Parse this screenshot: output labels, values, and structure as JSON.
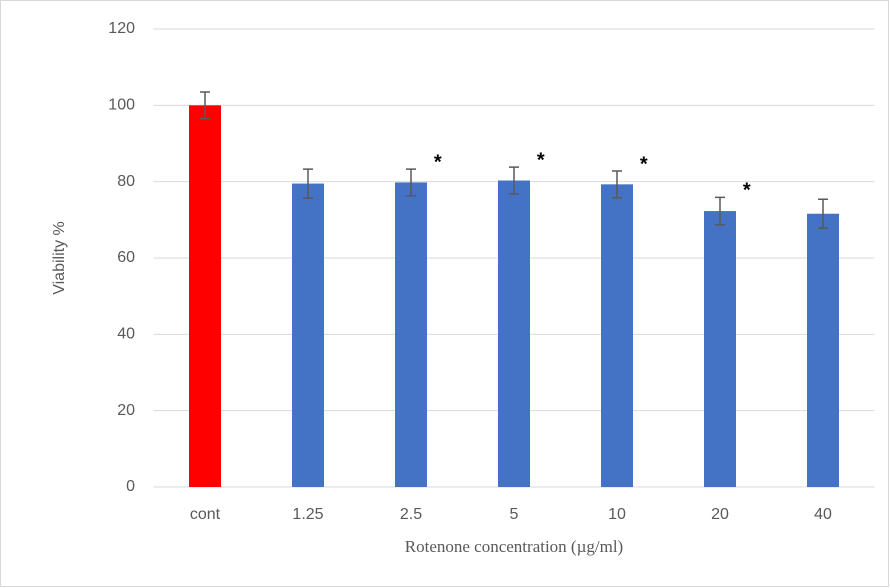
{
  "chart_data": {
    "type": "bar",
    "y_label": "Viability %",
    "x_label": "Rotenone concentration (µg/ml)",
    "categories": [
      "cont",
      "1.25",
      "2.5",
      "5",
      "10",
      "20",
      "40"
    ],
    "values": [
      100,
      79.5,
      79.8,
      80.3,
      79.3,
      72.3,
      71.6
    ],
    "errors": [
      3.5,
      3.8,
      3.5,
      3.5,
      3.5,
      3.6,
      3.8
    ],
    "colors": [
      "#ff0000",
      "#4472c4",
      "#4472c4",
      "#4472c4",
      "#4472c4",
      "#4472c4",
      "#4472c4"
    ],
    "significance": [
      null,
      null,
      "*",
      "*",
      "*",
      "*",
      null
    ],
    "ylim": [
      0,
      120
    ],
    "yticks": [
      0,
      20,
      40,
      60,
      80,
      100,
      120
    ],
    "grid": true
  }
}
